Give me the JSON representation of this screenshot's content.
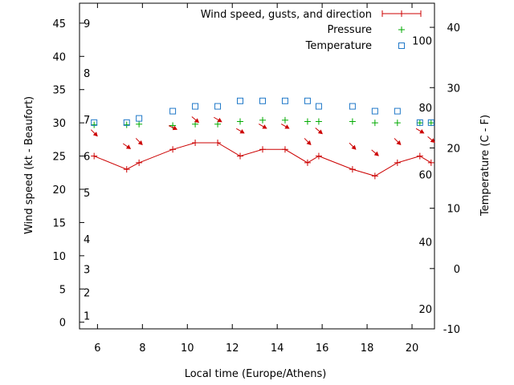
{
  "chart_data": {
    "type": "line",
    "xlabel": "Local time (Europe/Athens)",
    "ylabel_left": "Wind speed (kt - Beaufort)",
    "ylabel_right": "Temperature (C - F)",
    "xlim": [
      5.2,
      21
    ],
    "x_ticks": [
      6,
      8,
      10,
      12,
      14,
      16,
      18,
      20
    ],
    "ylim_left": [
      -1,
      48
    ],
    "y_ticks_left": [
      0,
      5,
      10,
      15,
      20,
      25,
      30,
      35,
      40,
      45
    ],
    "beaufort_labels": [
      {
        "label": "1",
        "kt": 1
      },
      {
        "label": "2",
        "kt": 4.5
      },
      {
        "label": "3",
        "kt": 8
      },
      {
        "label": "4",
        "kt": 12.5
      },
      {
        "label": "5",
        "kt": 19.5
      },
      {
        "label": "6",
        "kt": 25
      },
      {
        "label": "7",
        "kt": 30.5
      },
      {
        "label": "8",
        "kt": 37.5
      },
      {
        "label": "9",
        "kt": 45
      }
    ],
    "ylim_right": [
      -10,
      44
    ],
    "y_ticks_right": [
      -10,
      0,
      10,
      20,
      30,
      40
    ],
    "fahrenheit_labels": [
      {
        "label": "20",
        "c": -6.7
      },
      {
        "label": "40",
        "c": 4.4
      },
      {
        "label": "60",
        "c": 15.6
      },
      {
        "label": "80",
        "c": 26.7
      },
      {
        "label": "100",
        "c": 37.8
      }
    ],
    "legend": {
      "position": "top-right",
      "wind_label": "Wind speed, gusts, and direction",
      "pressure_label": "Pressure",
      "temperature_label": "Temperature"
    },
    "wind": {
      "color": "#cc0000",
      "x": [
        5.85,
        7.3,
        7.85,
        9.35,
        10.35,
        11.35,
        12.35,
        13.35,
        14.35,
        15.35,
        15.85,
        17.35,
        18.35,
        19.35,
        20.35,
        20.85
      ],
      "y": [
        25,
        23,
        24,
        26,
        27,
        27,
        25,
        26,
        26,
        24,
        25,
        23,
        22,
        24,
        25,
        24
      ]
    },
    "direction_arrows": {
      "color": "#cc0000",
      "points": [
        {
          "x": 5.85,
          "kt": 28.5,
          "angle": 45
        },
        {
          "x": 7.3,
          "kt": 26.5,
          "angle": 35
        },
        {
          "x": 7.85,
          "kt": 27.2,
          "angle": 45
        },
        {
          "x": 9.35,
          "kt": 29.3,
          "angle": 25
        },
        {
          "x": 10.35,
          "kt": 30.5,
          "angle": 40
        },
        {
          "x": 11.35,
          "kt": 30.5,
          "angle": 30
        },
        {
          "x": 12.35,
          "kt": 28.8,
          "angle": 30
        },
        {
          "x": 13.35,
          "kt": 29.5,
          "angle": 30
        },
        {
          "x": 14.35,
          "kt": 29.5,
          "angle": 30
        },
        {
          "x": 15.35,
          "kt": 27.2,
          "angle": 45
        },
        {
          "x": 15.85,
          "kt": 28.8,
          "angle": 40
        },
        {
          "x": 17.35,
          "kt": 26.5,
          "angle": 45
        },
        {
          "x": 18.35,
          "kt": 25.5,
          "angle": 40
        },
        {
          "x": 19.35,
          "kt": 27.2,
          "angle": 45
        },
        {
          "x": 20.35,
          "kt": 28.8,
          "angle": 30
        },
        {
          "x": 20.85,
          "kt": 27.5,
          "angle": 40
        }
      ]
    },
    "pressure": {
      "color": "#00aa00",
      "x": [
        5.85,
        7.3,
        7.85,
        9.35,
        10.35,
        11.35,
        12.35,
        13.35,
        14.35,
        15.35,
        15.85,
        17.35,
        18.35,
        19.35,
        20.35,
        20.85
      ],
      "kt": [
        29.7,
        29.7,
        29.8,
        29.6,
        29.8,
        29.8,
        30.2,
        30.4,
        30.4,
        30.2,
        30.2,
        30.2,
        30.0,
        30.0,
        30.0,
        30.0
      ]
    },
    "temperature": {
      "color": "#1f78c8",
      "x": [
        5.85,
        7.3,
        7.85,
        9.35,
        10.35,
        11.35,
        12.35,
        13.35,
        14.35,
        15.35,
        15.85,
        17.35,
        18.35,
        19.35,
        20.35,
        20.85
      ],
      "c": [
        24.2,
        24.2,
        24.9,
        26.1,
        26.9,
        26.9,
        27.8,
        27.8,
        27.8,
        27.8,
        26.9,
        26.9,
        26.1,
        26.1,
        24.2,
        24.2
      ]
    }
  }
}
